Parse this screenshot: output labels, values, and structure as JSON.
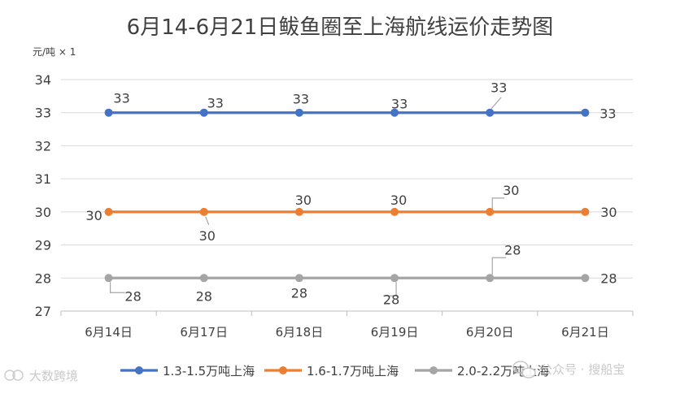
{
  "chart_data": {
    "type": "line",
    "title": "6月14-6月21日鲅鱼圈至上海航线运价走势图",
    "ylabel": "元/吨 × 1",
    "xlabel": "",
    "ylim": [
      27,
      34
    ],
    "yticks": [
      27,
      28,
      29,
      30,
      31,
      32,
      33,
      34
    ],
    "grid": true,
    "legend": "bottom",
    "categories": [
      "6月14日",
      "6月17日",
      "6月18日",
      "6月19日",
      "6月20日",
      "6月21日"
    ],
    "series": [
      {
        "name": "1.3-1.5万吨上海",
        "color": "#4472c4",
        "values": [
          33,
          33,
          33,
          33,
          33,
          33
        ]
      },
      {
        "name": "1.6-1.7万吨上海",
        "color": "#ed7d31",
        "values": [
          30,
          30,
          30,
          30,
          30,
          30
        ]
      },
      {
        "name": "2.0-2.2万吨上海",
        "color": "#a5a5a5",
        "values": [
          28,
          28,
          28,
          28,
          28,
          28
        ]
      }
    ]
  },
  "watermark": {
    "left_text": "大数跨境",
    "right_text": "公众号 · 搜船宝"
  }
}
